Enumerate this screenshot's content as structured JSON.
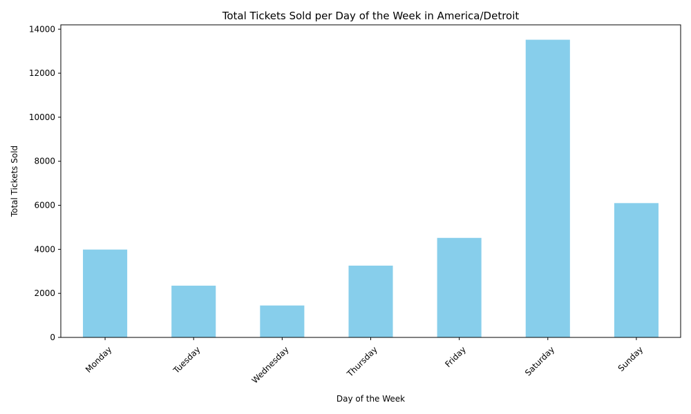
{
  "chart_data": {
    "type": "bar",
    "title": "Total Tickets Sold per Day of the Week in America/Detroit",
    "xlabel": "Day of the Week",
    "ylabel": "Total Tickets Sold",
    "categories": [
      "Monday",
      "Tuesday",
      "Wednesday",
      "Thursday",
      "Friday",
      "Saturday",
      "Sunday"
    ],
    "values": [
      3990,
      2350,
      1450,
      3260,
      4520,
      13520,
      6100
    ],
    "ylim": [
      0,
      14196
    ],
    "yticks": [
      0,
      2000,
      4000,
      6000,
      8000,
      10000,
      12000,
      14000
    ],
    "grid": false,
    "legend": false,
    "bar_color": "#87ceeb",
    "xtick_rotation": 45
  }
}
